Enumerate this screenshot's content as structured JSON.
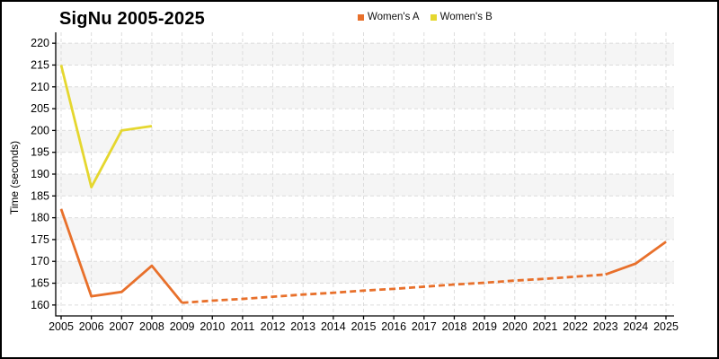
{
  "title": "SigNu 2005-2025",
  "colors": {
    "series_a": "#E8702B",
    "series_b": "#E5D72F",
    "gridline": "#DCDCDC",
    "band": "#F5F5F5",
    "axis": "#000000",
    "text": "#000000"
  },
  "chart_data": {
    "type": "line",
    "title": "SigNu 2005-2025",
    "xlabel": "",
    "ylabel": "Time (seconds)",
    "ylim": [
      157.5,
      222.5
    ],
    "yticks": [
      160,
      165,
      170,
      175,
      180,
      185,
      190,
      195,
      200,
      205,
      210,
      215,
      220
    ],
    "categories": [
      2005,
      2006,
      2007,
      2008,
      2009,
      2010,
      2011,
      2012,
      2013,
      2014,
      2015,
      2016,
      2017,
      2018,
      2019,
      2020,
      2021,
      2022,
      2023,
      2024,
      2025
    ],
    "grid": "dashed-horizontal-and-vertical",
    "background_bands": "alternating 5-unit horizontal stripes, gray from 165-170 up to 215-220",
    "legend_position": "top-center",
    "series": [
      {
        "name": "Women's A",
        "color": "#E8702B",
        "values": [
          182,
          162,
          163,
          169,
          160.5,
          161,
          161.4,
          161.9,
          162.4,
          162.8,
          163.3,
          163.7,
          164.2,
          164.7,
          165.1,
          165.6,
          166,
          166.5,
          167,
          169.5,
          174.5
        ],
        "style_segments": [
          {
            "from": 2005,
            "to": 2009,
            "style": "solid"
          },
          {
            "from": 2009,
            "to": 2023,
            "style": "dashed"
          },
          {
            "from": 2023,
            "to": 2025,
            "style": "solid"
          }
        ]
      },
      {
        "name": "Women's B",
        "color": "#E5D72F",
        "values": [
          215,
          187,
          200,
          201,
          null,
          null,
          null,
          null,
          null,
          null,
          null,
          null,
          null,
          null,
          null,
          null,
          null,
          null,
          null,
          null,
          null
        ],
        "style_segments": [
          {
            "from": 2005,
            "to": 2008,
            "style": "solid"
          }
        ]
      }
    ]
  }
}
